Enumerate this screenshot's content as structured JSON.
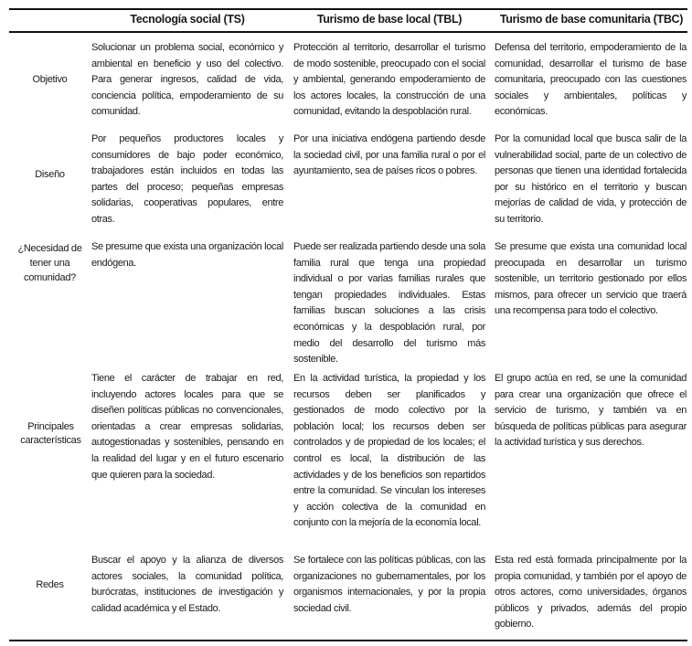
{
  "headers": [
    "Tecnología social (TS)",
    "Turismo de base local (TBL)",
    "Turismo de base comunitaria (TBC)"
  ],
  "rows": [
    {
      "label": "Objetivo",
      "ts": "Solucionar un problema social, económico y ambiental en beneficio y uso del colectivo. Para generar ingresos, calidad de vida, conciencia política, empoderamiento de su comunidad.",
      "tbl": "Protección al territorio, desarrollar el turismo de modo sostenible, preocupado con el social y ambiental, generando empoderamiento de los actores locales, la construcción de una comunidad, evitando la despoblación rural.",
      "tbc": "Defensa del territorio, empoderamiento de la comunidad, desarrollar el turismo de base comunitaria, preocupado con las cuestiones sociales y ambientales, políticas y económicas."
    },
    {
      "label": "Diseño",
      "ts": "Por pequeños productores locales y consumidores de bajo poder económico, trabajadores están incluidos en todas las partes del proceso; pequeñas empresas solidarias, cooperativas populares, entre otras.",
      "tbl": "Por una iniciativa endógena partiendo desde la sociedad civil, por una familia rural o por el ayuntamiento, sea de países ricos o pobres.",
      "tbc": "Por la comunidad local que busca salir de la vulnerabilidad social, parte de un colectivo de personas que tienen una identidad fortalecida por su histórico en el territorio y buscan mejorías de calidad de vida, y protección de su territorio."
    },
    {
      "label": "¿Necesidad de tener una comunidad?",
      "ts": "Se presume que exista una organización local endógena.",
      "tbl": "Puede ser realizada partiendo desde una sola familia rural que tenga una propiedad individual o por varias familias rurales que tengan propiedades individuales. Estas familias buscan soluciones a las crisis económicas y la despoblación rural, por medio del desarrollo del turismo más sostenible.",
      "tbc": "Se presume que exista una comunidad local preocupada en desarrollar un turismo sostenible, un territorio gestionado por ellos mismos, para ofrecer un servicio que traerá una recompensa para todo el colectivo."
    },
    {
      "label": "Principales características",
      "ts": "Tiene el carácter de trabajar en red, incluyendo actores locales para que se diseñen políticas públicas no convencionales, orientadas a crear empresas solidarias, autogestionadas y sostenibles, pensando en la realidad del lugar y en el futuro escenario que quieren para la sociedad.",
      "tbl": "En la actividad turística, la propiedad y los recursos deben ser planificados y gestionados de modo colectivo por la población local; los recursos deben ser controlados y de propiedad de los locales; el control es local, la distribución de las actividades y de los beneficios son repartidos entre la comunidad. Se vinculan los intereses y acción colectiva de la comunidad en conjunto con la mejoría de la economía local.",
      "tbc": "El grupo actúa en red, se une la comunidad para crear una organización que ofrece el servicio de turismo, y también va en búsqueda de políticas públicas para asegurar la actividad turística y sus derechos."
    },
    {
      "label": "Redes",
      "ts": "Buscar el apoyo y la alianza de diversos actores sociales, la comunidad política, burócratas, instituciones de investigación y calidad académica y el Estado.",
      "tbl": "Se fortalece con las políticas públicas, con las organizaciones no gubernamentales, por los organismos internacionales, y por la propia sociedad civil.",
      "tbc": "Esta red está formada principalmente por la propia comunidad, y también por el apoyo de otros actores, como universidades, órganos públicos y privados, además del propio gobierno."
    }
  ]
}
